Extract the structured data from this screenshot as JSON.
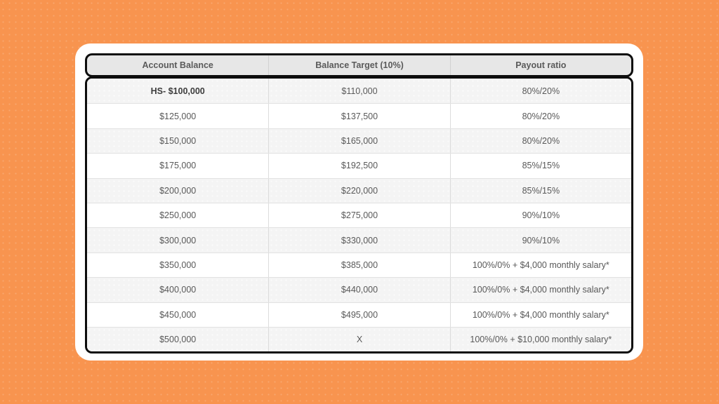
{
  "colors": {
    "background": "#f8944f",
    "card": "#ffffff",
    "table_border": "#0d0d0d",
    "header_bg": "#e7e7e7",
    "header_text": "#5a5a5a",
    "row_bg": "#ffffff",
    "row_alt_bg": "#f4f4f4",
    "cell_text": "#595959",
    "highlight_text": "#3d3d3d"
  },
  "chart_data": {
    "type": "table",
    "columns": [
      "Account Balance",
      "Balance Target (10%)",
      "Payout ratio"
    ],
    "rows": [
      [
        "HS- $100,000",
        "$110,000",
        "80%/20%"
      ],
      [
        "$125,000",
        "$137,500",
        "80%/20%"
      ],
      [
        "$150,000",
        "$165,000",
        "80%/20%"
      ],
      [
        "$175,000",
        "$192,500",
        "85%/15%"
      ],
      [
        "$200,000",
        "$220,000",
        "85%/15%"
      ],
      [
        "$250,000",
        "$275,000",
        "90%/10%"
      ],
      [
        "$300,000",
        "$330,000",
        "90%/10%"
      ],
      [
        "$350,000",
        "$385,000",
        "100%/0% + $4,000 monthly salary*"
      ],
      [
        "$400,000",
        "$440,000",
        "100%/0% + $4,000 monthly salary*"
      ],
      [
        "$450,000",
        "$495,000",
        "100%/0% + $4,000 monthly salary*"
      ],
      [
        "$500,000",
        "X",
        "100%/0% + $10,000 monthly salary*"
      ]
    ],
    "highlighted_row_index": 0,
    "layout": {
      "column_count": 3,
      "row_count": 11,
      "alternating_row_shading": true,
      "header_position": "top"
    }
  }
}
